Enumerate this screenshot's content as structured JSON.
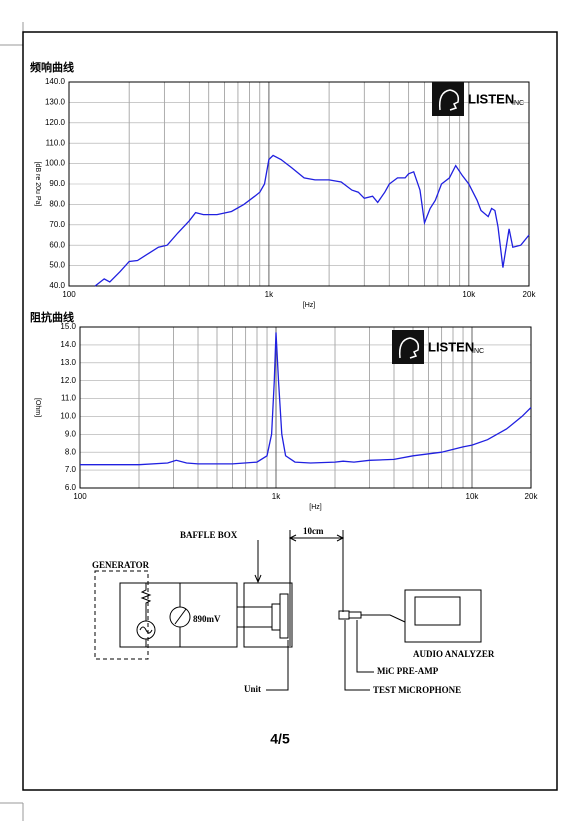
{
  "chart_data": [
    {
      "type": "line",
      "title": "频响曲线",
      "y_label": "[dB re 20u Pa]",
      "x_label": "[Hz]",
      "log_x": true,
      "grid": true,
      "logo": {
        "name": "LISTEN",
        "suffix": "INC"
      },
      "xlim": [
        100,
        20000
      ],
      "ylim": [
        40,
        140
      ],
      "xticks": [
        100,
        {
          "value": 1000,
          "label": "1k"
        },
        {
          "value": 10000,
          "label": "10k"
        },
        {
          "value": 20000,
          "label": "20k"
        }
      ],
      "minor_xticks": [
        200,
        300,
        400,
        500,
        600,
        700,
        800,
        900,
        2000,
        3000,
        4000,
        5000,
        6000,
        7000,
        8000,
        9000
      ],
      "yticks": [
        {
          "value": 40,
          "label": "40.0"
        },
        {
          "value": 50,
          "label": "50.0"
        },
        {
          "value": 60,
          "label": "60.0"
        },
        {
          "value": 70,
          "label": "70.0"
        },
        {
          "value": 80,
          "label": "80.0"
        },
        {
          "value": 90,
          "label": "90.0"
        },
        {
          "value": 100,
          "label": "100.0"
        },
        {
          "value": 110,
          "label": "110.0"
        },
        {
          "value": 120,
          "label": "120.0"
        },
        {
          "value": 130,
          "label": "130.0"
        },
        {
          "value": 140,
          "label": "140.0"
        }
      ],
      "color": "#2020e0",
      "x": [
        135,
        150,
        160,
        180,
        200,
        220,
        250,
        280,
        310,
        350,
        400,
        430,
        470,
        550,
        650,
        750,
        850,
        900,
        950,
        1000,
        1050,
        1150,
        1300,
        1500,
        1700,
        2000,
        2300,
        2600,
        2800,
        3000,
        3300,
        3500,
        3800,
        4000,
        4400,
        4800,
        5000,
        5300,
        5700,
        6000,
        6400,
        6800,
        7300,
        8000,
        8600,
        9300,
        10000,
        11000,
        11500,
        12500,
        13000,
        13500,
        14000,
        14800,
        15900,
        16600,
        18200,
        20000
      ],
      "values": [
        40,
        43.5,
        42,
        47,
        52,
        52.5,
        56,
        59,
        60,
        66,
        72,
        76,
        75,
        75,
        76.5,
        80,
        84,
        86,
        90,
        102,
        104,
        102,
        98,
        93,
        92,
        92,
        91,
        87,
        86,
        83,
        84,
        81,
        86,
        90,
        93,
        93,
        95,
        96,
        87,
        71,
        78,
        82,
        90,
        93,
        99,
        94,
        90,
        82,
        77,
        74,
        78,
        77,
        69,
        49,
        68,
        59,
        60,
        65
      ]
    },
    {
      "type": "line",
      "title": "阻抗曲线",
      "y_label": "[Ohm]",
      "x_label": "[Hz]",
      "log_x": true,
      "grid": true,
      "logo": {
        "name": "LISTEN",
        "suffix": "INC"
      },
      "xlim": [
        100,
        20000
      ],
      "ylim": [
        6,
        15
      ],
      "xticks": [
        100,
        {
          "value": 1000,
          "label": "1k"
        },
        {
          "value": 10000,
          "label": "10k"
        },
        {
          "value": 20000,
          "label": "20k"
        }
      ],
      "minor_xticks": [
        200,
        300,
        400,
        500,
        600,
        700,
        800,
        900,
        2000,
        3000,
        4000,
        5000,
        6000,
        7000,
        8000,
        9000
      ],
      "yticks": [
        {
          "value": 6,
          "label": "6.0"
        },
        {
          "value": 7,
          "label": "7.0"
        },
        {
          "value": 8,
          "label": "8.0"
        },
        {
          "value": 9,
          "label": "9.0"
        },
        {
          "value": 10,
          "label": "10.0"
        },
        {
          "value": 11,
          "label": "11.0"
        },
        {
          "value": 12,
          "label": "12.0"
        },
        {
          "value": 13,
          "label": "13.0"
        },
        {
          "value": 14,
          "label": "14.0"
        },
        {
          "value": 15,
          "label": "15.0"
        }
      ],
      "color": "#2020e0",
      "x": [
        100,
        200,
        280,
        310,
        350,
        400,
        600,
        800,
        900,
        950,
        980,
        1000,
        1030,
        1070,
        1120,
        1250,
        1500,
        2000,
        2200,
        2500,
        3000,
        4000,
        5000,
        7000,
        9000,
        10000,
        12000,
        15000,
        18000,
        20000
      ],
      "values": [
        7.3,
        7.3,
        7.4,
        7.55,
        7.4,
        7.35,
        7.35,
        7.45,
        7.8,
        9,
        12,
        14.7,
        12,
        9,
        7.8,
        7.45,
        7.4,
        7.45,
        7.5,
        7.45,
        7.55,
        7.6,
        7.8,
        8.0,
        8.3,
        8.4,
        8.7,
        9.3,
        10.0,
        10.5
      ]
    }
  ],
  "diagram": {
    "baffle_box": "BAFFLE BOX",
    "distance": "10cm",
    "generator": "GENERATOR",
    "voltage": "890mV",
    "unit": "Unit",
    "analyzer": "AUDIO ANALYZER",
    "preamp": "MiC PRE-AMP",
    "microphone": "TEST MiCROPHONE"
  },
  "page_number": "4/5"
}
